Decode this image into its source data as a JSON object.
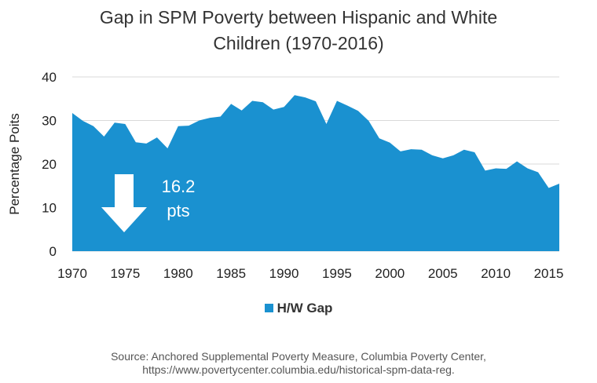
{
  "title_lines": [
    "Gap in SPM Poverty between Hispanic and White",
    "Children (1970-2016)"
  ],
  "source_lines": [
    "Source: Anchored Supplemental Poverty Measure, Columbia Poverty Center,",
    "https://www.povertycenter.columbia.edu/historical-spm-data-reg."
  ],
  "colors": {
    "area": "#1a91d0",
    "arrow": "#ffffff",
    "grid": "#d9d9d9"
  },
  "chart_data": {
    "type": "area",
    "title": "Gap in SPM Poverty between Hispanic and White Children (1970-2016)",
    "xlabel": "",
    "ylabel": "Percentage Poits",
    "xlim": [
      1970,
      2016
    ],
    "ylim": [
      0,
      40
    ],
    "x_ticks": [
      1970,
      1975,
      1980,
      1985,
      1990,
      1995,
      2000,
      2005,
      2010,
      2015
    ],
    "y_ticks": [
      0,
      10,
      20,
      30,
      40
    ],
    "grid": true,
    "legend_position": "bottom",
    "series": [
      {
        "name": "H/W Gap",
        "x": [
          1970,
          1971,
          1972,
          1973,
          1974,
          1975,
          1976,
          1977,
          1978,
          1979,
          1980,
          1981,
          1982,
          1983,
          1984,
          1985,
          1986,
          1987,
          1988,
          1989,
          1990,
          1991,
          1992,
          1993,
          1994,
          1995,
          1996,
          1997,
          1998,
          1999,
          2000,
          2001,
          2002,
          2003,
          2004,
          2005,
          2006,
          2007,
          2008,
          2009,
          2010,
          2011,
          2012,
          2013,
          2014,
          2015,
          2016
        ],
        "values": [
          31.7,
          29.9,
          28.7,
          26.3,
          29.5,
          29.2,
          25.0,
          24.7,
          26.1,
          23.6,
          28.7,
          28.8,
          30.0,
          30.6,
          30.9,
          33.8,
          32.3,
          34.5,
          34.2,
          32.5,
          33.1,
          35.8,
          35.3,
          34.4,
          29.2,
          34.5,
          33.4,
          32.2,
          29.9,
          25.9,
          24.9,
          22.9,
          23.4,
          23.3,
          22.0,
          21.3,
          22.0,
          23.3,
          22.7,
          18.5,
          19.0,
          18.9,
          20.6,
          19.0,
          18.1,
          14.5,
          15.5
        ]
      }
    ],
    "annotations": [
      {
        "text_lines": [
          "16.2",
          "pts"
        ],
        "shape": "down-arrow",
        "from_year": 1970,
        "to_year": 2016
      }
    ]
  }
}
